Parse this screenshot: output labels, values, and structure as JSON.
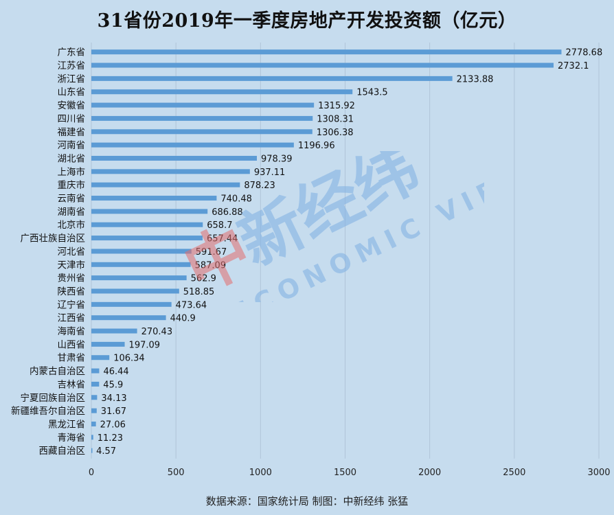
{
  "chart_data": {
    "type": "bar",
    "orientation": "horizontal",
    "title": "31省份2019年一季度房地产开发投资额（亿元）",
    "categories": [
      "广东省",
      "江苏省",
      "浙江省",
      "山东省",
      "安徽省",
      "四川省",
      "福建省",
      "河南省",
      "湖北省",
      "上海市",
      "重庆市",
      "云南省",
      "湖南省",
      "北京市",
      "广西壮族自治区",
      "河北省",
      "天津市",
      "贵州省",
      "陕西省",
      "辽宁省",
      "江西省",
      "海南省",
      "山西省",
      "甘肃省",
      "内蒙古自治区",
      "吉林省",
      "宁夏回族自治区",
      "新疆维吾尔自治区",
      "黑龙江省",
      "青海省",
      "西藏自治区"
    ],
    "values": [
      2778.68,
      2732.1,
      2133.88,
      1543.5,
      1315.92,
      1308.31,
      1306.38,
      1196.96,
      978.39,
      937.11,
      878.23,
      740.48,
      686.88,
      658.7,
      657.44,
      591.67,
      587.09,
      562.9,
      518.85,
      473.64,
      440.9,
      270.43,
      197.09,
      106.34,
      46.44,
      45.9,
      34.13,
      31.67,
      27.06,
      11.23,
      4.57
    ],
    "value_labels": [
      "2778.68",
      "2732.1",
      "2133.88",
      "1543.5",
      "1315.92",
      "1308.31",
      "1306.38",
      "1196.96",
      "978.39",
      "937.11",
      "878.23",
      "740.48",
      "686.88",
      "658.7",
      "657.44",
      "591.67",
      "587.09",
      "562.9",
      "518.85",
      "473.64",
      "440.9",
      "270.43",
      "197.09",
      "106.34",
      "46.44",
      "45.9",
      "34.13",
      "31.67",
      "27.06",
      "11.23",
      "4.57"
    ],
    "xlim": [
      0,
      3000
    ],
    "xticks": [
      "0",
      "500",
      "1000",
      "1500",
      "2000",
      "2500",
      "3000"
    ],
    "grid": true,
    "bar_color": "#5b9bd5"
  },
  "footer": "数据来源：国家统计局  制图：中新经纬 张猛",
  "watermark": {
    "logo_text": "中新经纬",
    "sub_text": "ECONOMIC VIEW"
  }
}
